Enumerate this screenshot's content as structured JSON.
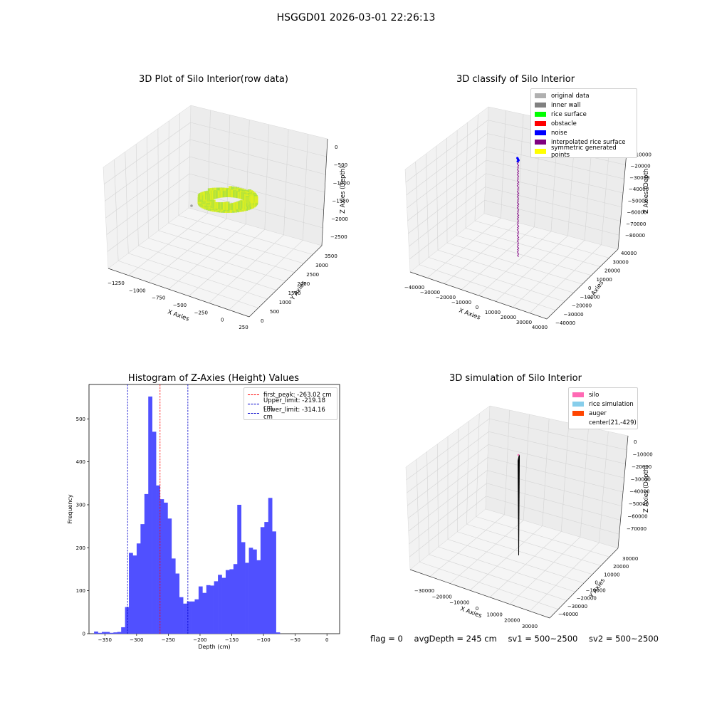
{
  "suptitle": "HSGGD01 2026-03-01 22:26:13",
  "status": {
    "flag": "flag = 0",
    "avg_depth": "avgDepth = 245 cm",
    "sv1": "sv1 = 500~2500",
    "sv2": "sv2 = 500~2500"
  },
  "colors": {
    "original_data": "#b0b0b0",
    "inner_wall": "#808080",
    "rice_surface": "#00ff00",
    "obstacle": "#ff0000",
    "noise": "#0000ff",
    "interpolated_rice_surface": "#800080",
    "symmetric_generated_points": "#ffff00",
    "histogram": "#5050ff",
    "silo": "#ff69b4",
    "rice_simulation": "#87ceeb",
    "auger": "#ff4500"
  },
  "chart_data": [
    {
      "type": "scatter",
      "title": "3D Plot of Silo Interior(row data)",
      "xlabel": "X Axies",
      "ylabel": "Y Axies",
      "zlabel": "Z Axies (Depth)",
      "x_ticks": [
        "−1250",
        "−1000",
        "−750",
        "−500",
        "−250",
        "0",
        "250"
      ],
      "y_ticks": [
        "0",
        "500",
        "1000",
        "1500",
        "2000",
        "2500",
        "3000",
        "3500"
      ],
      "z_ticks": [
        "0",
        "−500",
        "−1000",
        "−1500",
        "−2000",
        "−2500"
      ],
      "zlim": [
        -2500,
        0
      ]
    },
    {
      "type": "scatter",
      "title": "3D classify of Silo Interior",
      "xlabel": "X Axies",
      "ylabel": "Y Axies",
      "zlabel": "Z Axies (Depth",
      "x_ticks": [
        "−40000",
        "−30000",
        "−20000",
        "−10000",
        "0",
        "10000",
        "20000",
        "30000",
        "40000"
      ],
      "y_ticks": [
        "−40000",
        "−30000",
        "−20000",
        "−10000",
        "0",
        "10000",
        "20000",
        "30000",
        "40000"
      ],
      "z_ticks": [
        "0",
        "−10000",
        "−20000",
        "−30000",
        "−40000",
        "−50000",
        "−60000",
        "−70000",
        "−80000"
      ],
      "legend": [
        "original data",
        "inner wall",
        "rice surface",
        "obstacle",
        "noise",
        "interpolated rice surface",
        "symmetric generated points"
      ],
      "legend_position": "top-right"
    },
    {
      "type": "bar",
      "title": "Histogram of Z-Axies (Height) Values",
      "xlabel": "Depth (cm)",
      "ylabel": "Frequency",
      "xlim": [
        -375,
        20
      ],
      "ylim": [
        0,
        580
      ],
      "x_ticks": [
        -350,
        -300,
        -250,
        -200,
        -150,
        -100,
        -50,
        0
      ],
      "y_ticks": [
        0,
        100,
        200,
        300,
        400,
        500
      ],
      "bin_start": -367,
      "bin_width": 6.1,
      "values": [
        5,
        2,
        4,
        4,
        2,
        3,
        4,
        15,
        62,
        188,
        182,
        210,
        255,
        325,
        552,
        470,
        345,
        313,
        305,
        268,
        175,
        140,
        85,
        70,
        75,
        75,
        80,
        110,
        95,
        113,
        112,
        122,
        137,
        130,
        148,
        150,
        162,
        300,
        213,
        165,
        200,
        196,
        171,
        248,
        260,
        316,
        238,
        3
      ],
      "lines": [
        {
          "label": "first_peak: -263.02 cm",
          "x": -263.02,
          "color": "#ff0000"
        },
        {
          "label": "Upper_limit: -219.18 cm",
          "x": -219.18,
          "color": "#0000cc"
        },
        {
          "label": "Lower_limit: -314.16 cm",
          "x": -314.16,
          "color": "#0000cc"
        }
      ],
      "legend_position": "top-right"
    },
    {
      "type": "scatter",
      "title": "3D simulation of Silo Interior",
      "xlabel": "X Axies",
      "ylabel": "Y Axies",
      "zlabel": "Z Axies (Depth)",
      "x_ticks": [
        "−30000",
        "−20000",
        "−10000",
        "0",
        "10000",
        "20000",
        "30000"
      ],
      "y_ticks": [
        "−40000",
        "−30000",
        "−20000",
        "−10000",
        "0",
        "10000",
        "20000",
        "30000"
      ],
      "z_ticks": [
        "0",
        "−10000",
        "−20000",
        "−30000",
        "−40000",
        "−50000",
        "−60000",
        "−70000"
      ],
      "legend": [
        "silo",
        "rice simulation",
        "auger",
        "center(21,-429)"
      ],
      "legend_position": "top-right"
    }
  ]
}
